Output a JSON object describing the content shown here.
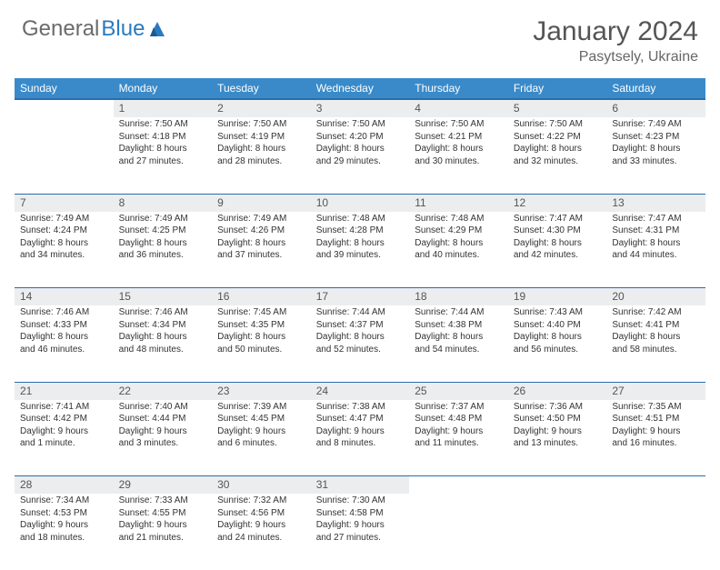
{
  "logo": {
    "text1": "General",
    "text2": "Blue"
  },
  "title": "January 2024",
  "location": "Pasytsely, Ukraine",
  "colors": {
    "header_bg": "#3a8ac9",
    "header_border": "#2a6ea8",
    "daynum_bg": "#ecedee",
    "text": "#333333",
    "title_text": "#555555",
    "logo_gray": "#6a6a6a",
    "logo_blue": "#2a7ac0"
  },
  "dow": [
    "Sunday",
    "Monday",
    "Tuesday",
    "Wednesday",
    "Thursday",
    "Friday",
    "Saturday"
  ],
  "weeks": [
    {
      "nums": [
        "",
        "1",
        "2",
        "3",
        "4",
        "5",
        "6"
      ],
      "cells": [
        null,
        {
          "sr": "Sunrise: 7:50 AM",
          "ss": "Sunset: 4:18 PM",
          "d1": "Daylight: 8 hours",
          "d2": "and 27 minutes."
        },
        {
          "sr": "Sunrise: 7:50 AM",
          "ss": "Sunset: 4:19 PM",
          "d1": "Daylight: 8 hours",
          "d2": "and 28 minutes."
        },
        {
          "sr": "Sunrise: 7:50 AM",
          "ss": "Sunset: 4:20 PM",
          "d1": "Daylight: 8 hours",
          "d2": "and 29 minutes."
        },
        {
          "sr": "Sunrise: 7:50 AM",
          "ss": "Sunset: 4:21 PM",
          "d1": "Daylight: 8 hours",
          "d2": "and 30 minutes."
        },
        {
          "sr": "Sunrise: 7:50 AM",
          "ss": "Sunset: 4:22 PM",
          "d1": "Daylight: 8 hours",
          "d2": "and 32 minutes."
        },
        {
          "sr": "Sunrise: 7:49 AM",
          "ss": "Sunset: 4:23 PM",
          "d1": "Daylight: 8 hours",
          "d2": "and 33 minutes."
        }
      ]
    },
    {
      "nums": [
        "7",
        "8",
        "9",
        "10",
        "11",
        "12",
        "13"
      ],
      "cells": [
        {
          "sr": "Sunrise: 7:49 AM",
          "ss": "Sunset: 4:24 PM",
          "d1": "Daylight: 8 hours",
          "d2": "and 34 minutes."
        },
        {
          "sr": "Sunrise: 7:49 AM",
          "ss": "Sunset: 4:25 PM",
          "d1": "Daylight: 8 hours",
          "d2": "and 36 minutes."
        },
        {
          "sr": "Sunrise: 7:49 AM",
          "ss": "Sunset: 4:26 PM",
          "d1": "Daylight: 8 hours",
          "d2": "and 37 minutes."
        },
        {
          "sr": "Sunrise: 7:48 AM",
          "ss": "Sunset: 4:28 PM",
          "d1": "Daylight: 8 hours",
          "d2": "and 39 minutes."
        },
        {
          "sr": "Sunrise: 7:48 AM",
          "ss": "Sunset: 4:29 PM",
          "d1": "Daylight: 8 hours",
          "d2": "and 40 minutes."
        },
        {
          "sr": "Sunrise: 7:47 AM",
          "ss": "Sunset: 4:30 PM",
          "d1": "Daylight: 8 hours",
          "d2": "and 42 minutes."
        },
        {
          "sr": "Sunrise: 7:47 AM",
          "ss": "Sunset: 4:31 PM",
          "d1": "Daylight: 8 hours",
          "d2": "and 44 minutes."
        }
      ]
    },
    {
      "nums": [
        "14",
        "15",
        "16",
        "17",
        "18",
        "19",
        "20"
      ],
      "cells": [
        {
          "sr": "Sunrise: 7:46 AM",
          "ss": "Sunset: 4:33 PM",
          "d1": "Daylight: 8 hours",
          "d2": "and 46 minutes."
        },
        {
          "sr": "Sunrise: 7:46 AM",
          "ss": "Sunset: 4:34 PM",
          "d1": "Daylight: 8 hours",
          "d2": "and 48 minutes."
        },
        {
          "sr": "Sunrise: 7:45 AM",
          "ss": "Sunset: 4:35 PM",
          "d1": "Daylight: 8 hours",
          "d2": "and 50 minutes."
        },
        {
          "sr": "Sunrise: 7:44 AM",
          "ss": "Sunset: 4:37 PM",
          "d1": "Daylight: 8 hours",
          "d2": "and 52 minutes."
        },
        {
          "sr": "Sunrise: 7:44 AM",
          "ss": "Sunset: 4:38 PM",
          "d1": "Daylight: 8 hours",
          "d2": "and 54 minutes."
        },
        {
          "sr": "Sunrise: 7:43 AM",
          "ss": "Sunset: 4:40 PM",
          "d1": "Daylight: 8 hours",
          "d2": "and 56 minutes."
        },
        {
          "sr": "Sunrise: 7:42 AM",
          "ss": "Sunset: 4:41 PM",
          "d1": "Daylight: 8 hours",
          "d2": "and 58 minutes."
        }
      ]
    },
    {
      "nums": [
        "21",
        "22",
        "23",
        "24",
        "25",
        "26",
        "27"
      ],
      "cells": [
        {
          "sr": "Sunrise: 7:41 AM",
          "ss": "Sunset: 4:42 PM",
          "d1": "Daylight: 9 hours",
          "d2": "and 1 minute."
        },
        {
          "sr": "Sunrise: 7:40 AM",
          "ss": "Sunset: 4:44 PM",
          "d1": "Daylight: 9 hours",
          "d2": "and 3 minutes."
        },
        {
          "sr": "Sunrise: 7:39 AM",
          "ss": "Sunset: 4:45 PM",
          "d1": "Daylight: 9 hours",
          "d2": "and 6 minutes."
        },
        {
          "sr": "Sunrise: 7:38 AM",
          "ss": "Sunset: 4:47 PM",
          "d1": "Daylight: 9 hours",
          "d2": "and 8 minutes."
        },
        {
          "sr": "Sunrise: 7:37 AM",
          "ss": "Sunset: 4:48 PM",
          "d1": "Daylight: 9 hours",
          "d2": "and 11 minutes."
        },
        {
          "sr": "Sunrise: 7:36 AM",
          "ss": "Sunset: 4:50 PM",
          "d1": "Daylight: 9 hours",
          "d2": "and 13 minutes."
        },
        {
          "sr": "Sunrise: 7:35 AM",
          "ss": "Sunset: 4:51 PM",
          "d1": "Daylight: 9 hours",
          "d2": "and 16 minutes."
        }
      ]
    },
    {
      "nums": [
        "28",
        "29",
        "30",
        "31",
        "",
        "",
        ""
      ],
      "cells": [
        {
          "sr": "Sunrise: 7:34 AM",
          "ss": "Sunset: 4:53 PM",
          "d1": "Daylight: 9 hours",
          "d2": "and 18 minutes."
        },
        {
          "sr": "Sunrise: 7:33 AM",
          "ss": "Sunset: 4:55 PM",
          "d1": "Daylight: 9 hours",
          "d2": "and 21 minutes."
        },
        {
          "sr": "Sunrise: 7:32 AM",
          "ss": "Sunset: 4:56 PM",
          "d1": "Daylight: 9 hours",
          "d2": "and 24 minutes."
        },
        {
          "sr": "Sunrise: 7:30 AM",
          "ss": "Sunset: 4:58 PM",
          "d1": "Daylight: 9 hours",
          "d2": "and 27 minutes."
        },
        null,
        null,
        null
      ]
    }
  ]
}
